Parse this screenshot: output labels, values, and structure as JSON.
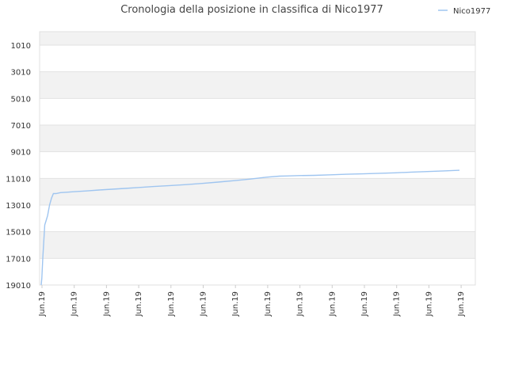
{
  "chart_data": {
    "type": "line",
    "title": "Cronologia della posizione in classifica di Nico1977",
    "xlabel": "",
    "ylabel": "",
    "y_inverted": true,
    "ylim": [
      19010,
      0
    ],
    "y_ticks": [
      "1010",
      "3010",
      "5010",
      "7010",
      "9010",
      "11010",
      "13010",
      "15010",
      "17010",
      "19010"
    ],
    "y_tick_values": [
      1010,
      3010,
      5010,
      7010,
      9010,
      11010,
      13010,
      15010,
      17010,
      19010
    ],
    "x_ticks": [
      "Jun.19",
      "Jun.19",
      "Jun.19",
      "Jun.19",
      "Jun.19",
      "Jun.19",
      "Jun.19",
      "Jun.19",
      "Jun.19",
      "Jun.19",
      "Jun.19",
      "Jun.19",
      "Jun.19",
      "Jun.19"
    ],
    "grid": true,
    "legend_position": "top-right",
    "series": [
      {
        "name": "Nico1977",
        "color": "#9fc5f0",
        "x": [
          0,
          0.2,
          0.5,
          0.8,
          1.1,
          1.5,
          2.0,
          2.6,
          3.2,
          3.8,
          4.6,
          6,
          8,
          10,
          14,
          18,
          22,
          26,
          30,
          35,
          40,
          45,
          50,
          55,
          60,
          65,
          70,
          74,
          76,
          80,
          85,
          90,
          95,
          100,
          105,
          110,
          115,
          120,
          125,
          130
        ],
        "values": [
          19010,
          18500,
          17000,
          15800,
          14500,
          14200,
          13800,
          13000,
          12500,
          12150,
          12150,
          12080,
          12050,
          12010,
          11950,
          11880,
          11820,
          11760,
          11700,
          11620,
          11550,
          11480,
          11390,
          11290,
          11180,
          11060,
          10920,
          10840,
          10830,
          10800,
          10780,
          10740,
          10700,
          10670,
          10630,
          10590,
          10540,
          10500,
          10450,
          10400
        ]
      }
    ]
  }
}
